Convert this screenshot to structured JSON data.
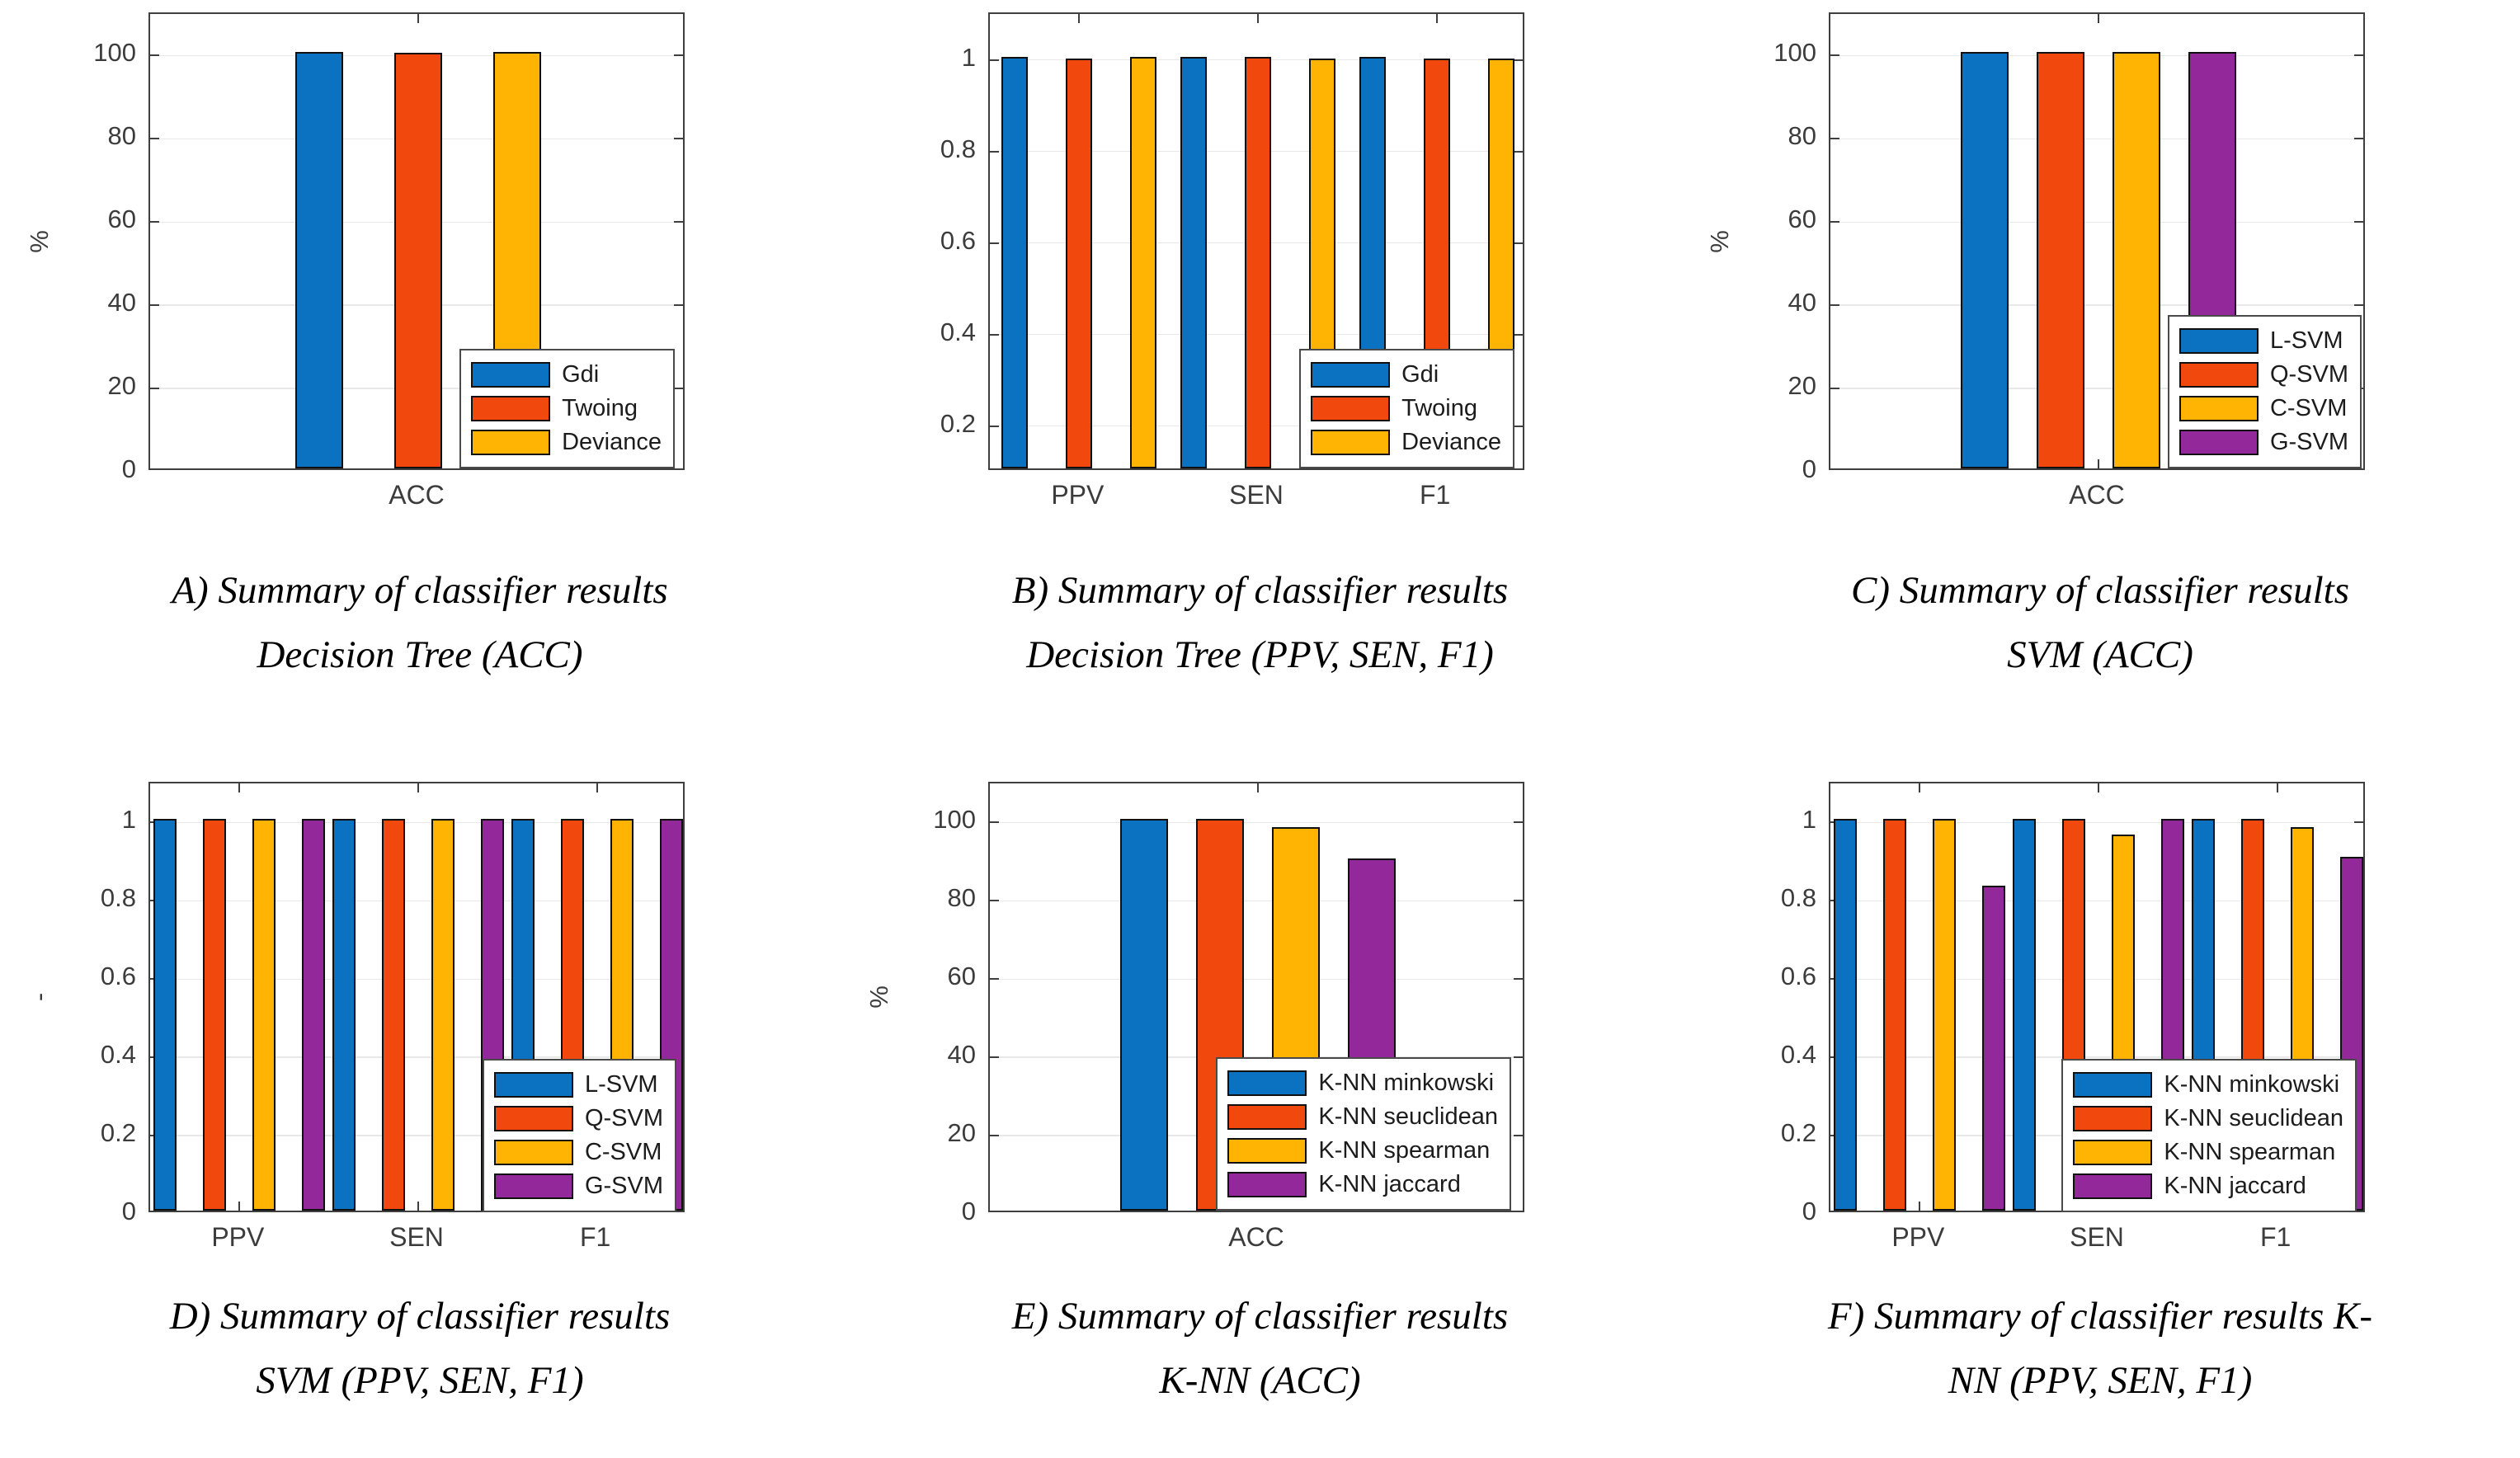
{
  "figure": {
    "background": "#ffffff",
    "description_visible_text_only": true
  },
  "colors": {
    "blue": "#0A72C0",
    "orange": "#F1480E",
    "yellow": "#FFB404",
    "purple": "#93289B",
    "axis": "#3f3f3f",
    "grid": "#e8e8e8",
    "bar_border": "#101010"
  },
  "chart_data": [
    {
      "id": "A",
      "type": "bar",
      "ylabel": "%",
      "categories": [
        "ACC"
      ],
      "series": [
        {
          "name": "Gdi",
          "color_key": "blue",
          "values": [
            100
          ]
        },
        {
          "name": "Twoing",
          "color_key": "orange",
          "values": [
            99.8
          ]
        },
        {
          "name": "Deviance",
          "color_key": "yellow",
          "values": [
            100
          ]
        }
      ],
      "ylim": [
        0,
        110
      ],
      "yticks": [
        {
          "v": 0,
          "label": "0"
        },
        {
          "v": 20,
          "label": "20"
        },
        {
          "v": 40,
          "label": "40"
        },
        {
          "v": 60,
          "label": "60"
        },
        {
          "v": 80,
          "label": "80"
        },
        {
          "v": 100,
          "label": "100"
        }
      ],
      "grid": true,
      "legend_position": "bottom-right-inside",
      "legend_offset": {
        "right": 10,
        "bottom": 0
      },
      "caption_lines": [
        "A) Summary of classifier results",
        "Decision Tree (ACC)"
      ]
    },
    {
      "id": "B",
      "type": "bar",
      "ylabel": "",
      "categories": [
        "PPV",
        "SEN",
        "F1"
      ],
      "series": [
        {
          "name": "Gdi",
          "color_key": "blue",
          "values": [
            1,
            1,
            1
          ]
        },
        {
          "name": "Twoing",
          "color_key": "orange",
          "values": [
            0.995,
            1,
            0.995
          ]
        },
        {
          "name": "Deviance",
          "color_key": "yellow",
          "values": [
            1,
            0.995,
            0.995
          ]
        }
      ],
      "ylim": [
        0.1,
        1.1
      ],
      "yticks": [
        {
          "v": 0.2,
          "label": "0.2"
        },
        {
          "v": 0.4,
          "label": "0.4"
        },
        {
          "v": 0.6,
          "label": "0.6"
        },
        {
          "v": 0.8,
          "label": "0.8"
        },
        {
          "v": 1,
          "label": "1"
        }
      ],
      "grid": true,
      "legend_position": "bottom-right-inside",
      "legend_offset": {
        "right": 10,
        "bottom": 0
      },
      "caption_lines": [
        "B) Summary of classifier results",
        "Decision Tree (PPV, SEN, F1)"
      ]
    },
    {
      "id": "C",
      "type": "bar",
      "ylabel": "%",
      "categories": [
        "ACC"
      ],
      "series": [
        {
          "name": "L-SVM",
          "color_key": "blue",
          "values": [
            100
          ]
        },
        {
          "name": "Q-SVM",
          "color_key": "orange",
          "values": [
            100
          ]
        },
        {
          "name": "C-SVM",
          "color_key": "yellow",
          "values": [
            100
          ]
        },
        {
          "name": "G-SVM",
          "color_key": "purple",
          "values": [
            100
          ]
        }
      ],
      "ylim": [
        0,
        110
      ],
      "yticks": [
        {
          "v": 0,
          "label": "0"
        },
        {
          "v": 20,
          "label": "20"
        },
        {
          "v": 40,
          "label": "40"
        },
        {
          "v": 60,
          "label": "60"
        },
        {
          "v": 80,
          "label": "80"
        },
        {
          "v": 100,
          "label": "100"
        }
      ],
      "grid": true,
      "legend_position": "bottom-right-inside",
      "legend_offset": {
        "right": 2,
        "bottom": 0
      },
      "caption_lines": [
        "C) Summary of classifier results",
        "SVM (ACC)"
      ]
    },
    {
      "id": "D",
      "type": "bar",
      "ylabel": "-",
      "categories": [
        "PPV",
        "SEN",
        "F1"
      ],
      "series": [
        {
          "name": "L-SVM",
          "color_key": "blue",
          "values": [
            1,
            1,
            1
          ]
        },
        {
          "name": "Q-SVM",
          "color_key": "orange",
          "values": [
            1,
            1,
            1
          ]
        },
        {
          "name": "C-SVM",
          "color_key": "yellow",
          "values": [
            1,
            1,
            1
          ]
        },
        {
          "name": "G-SVM",
          "color_key": "purple",
          "values": [
            1,
            1,
            1
          ]
        }
      ],
      "ylim": [
        0,
        1.1
      ],
      "yticks": [
        {
          "v": 0,
          "label": "0"
        },
        {
          "v": 0.2,
          "label": "0.2"
        },
        {
          "v": 0.4,
          "label": "0.4"
        },
        {
          "v": 0.6,
          "label": "0.6"
        },
        {
          "v": 0.8,
          "label": "0.8"
        },
        {
          "v": 1,
          "label": "1"
        }
      ],
      "grid": true,
      "legend_position": "bottom-right-inside",
      "legend_offset": {
        "right": 8,
        "bottom": -2
      },
      "caption_lines": [
        "D) Summary of classifier results",
        "SVM (PPV, SEN, F1)"
      ]
    },
    {
      "id": "E",
      "type": "bar",
      "ylabel": "%",
      "categories": [
        "ACC"
      ],
      "series": [
        {
          "name": "K-NN minkowski",
          "color_key": "blue",
          "values": [
            100
          ]
        },
        {
          "name": "K-NN seuclidean",
          "color_key": "orange",
          "values": [
            100
          ]
        },
        {
          "name": "K-NN spearman",
          "color_key": "yellow",
          "values": [
            98
          ]
        },
        {
          "name": "K-NN jaccard",
          "color_key": "purple",
          "values": [
            90
          ]
        }
      ],
      "ylim": [
        0,
        110
      ],
      "yticks": [
        {
          "v": 0,
          "label": "0"
        },
        {
          "v": 20,
          "label": "20"
        },
        {
          "v": 40,
          "label": "40"
        },
        {
          "v": 60,
          "label": "60"
        },
        {
          "v": 80,
          "label": "80"
        },
        {
          "v": 100,
          "label": "100"
        }
      ],
      "grid": true,
      "legend_position": "bottom-right-inside",
      "legend_offset": {
        "right": 14,
        "bottom": 0
      },
      "caption_lines": [
        "E) Summary of classifier results",
        "K-NN (ACC)"
      ]
    },
    {
      "id": "F",
      "type": "bar",
      "ylabel": "",
      "categories": [
        "PPV",
        "SEN",
        "F1"
      ],
      "series": [
        {
          "name": "K-NN minkowski",
          "color_key": "blue",
          "values": [
            1,
            1,
            1
          ]
        },
        {
          "name": "K-NN seuclidean",
          "color_key": "orange",
          "values": [
            1,
            1,
            1
          ]
        },
        {
          "name": "K-NN spearman",
          "color_key": "yellow",
          "values": [
            1,
            0.96,
            0.98
          ]
        },
        {
          "name": "K-NN jaccard",
          "color_key": "purple",
          "values": [
            0.83,
            1,
            0.905
          ]
        }
      ],
      "ylim": [
        0,
        1.1
      ],
      "yticks": [
        {
          "v": 0,
          "label": "0"
        },
        {
          "v": 0.2,
          "label": "0.2"
        },
        {
          "v": 0.4,
          "label": "0.4"
        },
        {
          "v": 0.6,
          "label": "0.6"
        },
        {
          "v": 0.8,
          "label": "0.8"
        },
        {
          "v": 1,
          "label": "1"
        }
      ],
      "grid": true,
      "legend_position": "bottom-right-inside",
      "legend_offset": {
        "right": 8,
        "bottom": -2
      },
      "caption_lines": [
        "F) Summary of classifier results K-",
        "NN (PPV, SEN, F1)"
      ]
    }
  ]
}
